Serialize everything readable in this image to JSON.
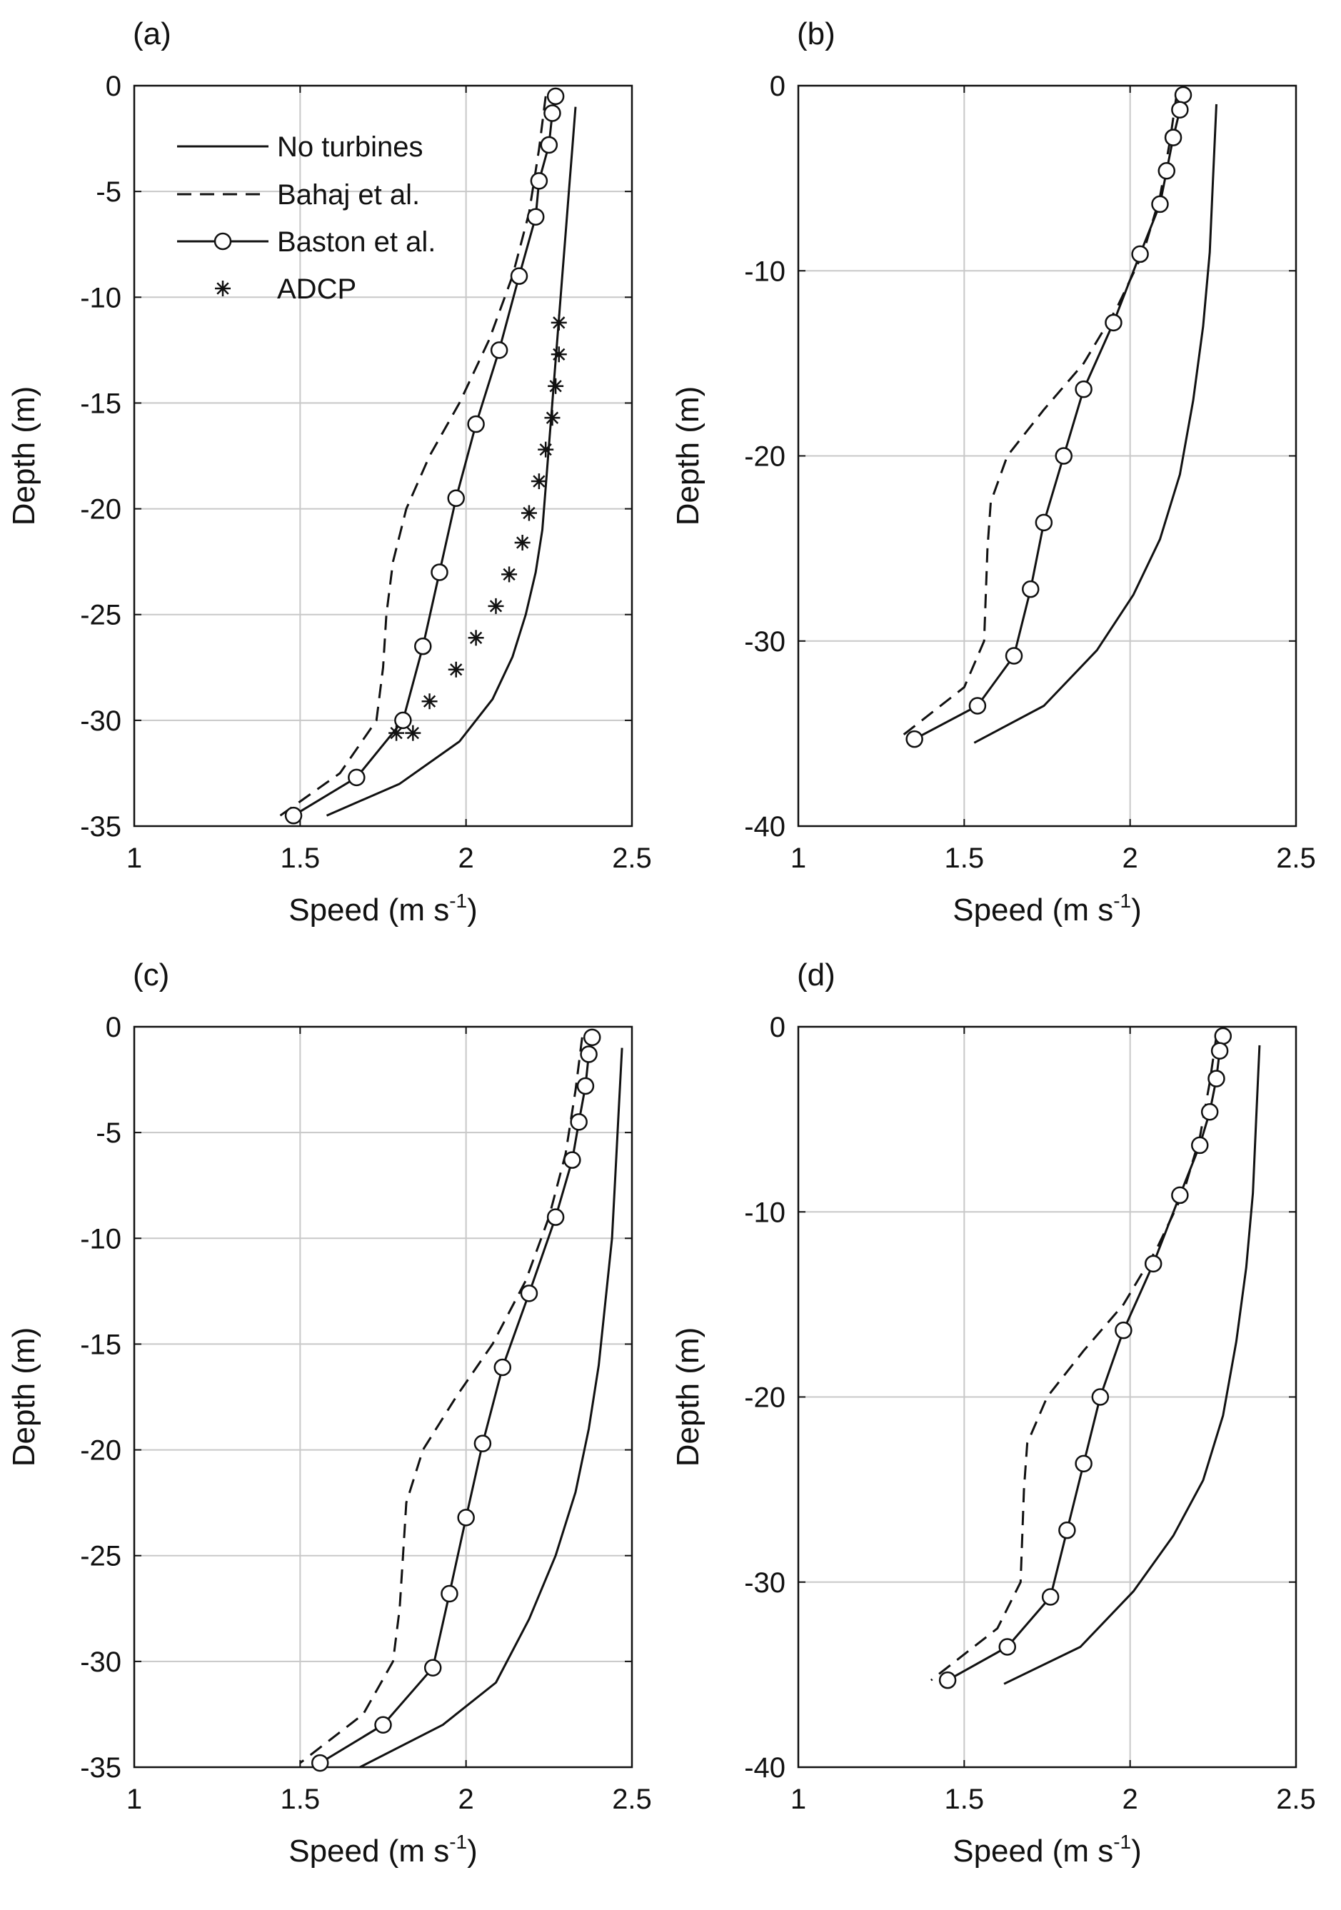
{
  "figure": {
    "background": "#ffffff",
    "line_color": "#111111",
    "grid_color": "#c8c8c8"
  },
  "legend": {
    "items": [
      {
        "name": "No turbines",
        "style": "solid"
      },
      {
        "name": "Bahaj et al.",
        "style": "dashed"
      },
      {
        "name": "Baston et al.",
        "style": "solid-circle"
      },
      {
        "name": "ADCP",
        "style": "asterisk"
      }
    ]
  },
  "chart_data": [
    {
      "panel": "(a)",
      "type": "line",
      "xlabel": "Speed (m s",
      "xlabel_sup": "-1",
      "xlabel_close": ")",
      "ylabel": "Depth (m)",
      "xlim": [
        1,
        2.5
      ],
      "ylim": [
        -35,
        0
      ],
      "xticks": [
        1,
        1.5,
        2,
        2.5
      ],
      "xtick_labels": [
        "1",
        "1.5",
        "2",
        "2.5"
      ],
      "yticks": [
        0,
        -5,
        -10,
        -15,
        -20,
        -25,
        -30,
        -35
      ],
      "ytick_labels": [
        "0",
        "-5",
        "-10",
        "-15",
        "-20",
        "-25",
        "-30",
        "-35"
      ],
      "grid": true,
      "legend": true,
      "series": [
        {
          "name": "No turbines",
          "style": "solid",
          "x": [
            2.33,
            2.32,
            2.31,
            2.3,
            2.29,
            2.28,
            2.27,
            2.26,
            2.25,
            2.24,
            2.23,
            2.21,
            2.18,
            2.14,
            2.08,
            1.98,
            1.8,
            1.58
          ],
          "y": [
            -1,
            -3,
            -5,
            -7,
            -9,
            -11,
            -13,
            -15,
            -17,
            -19,
            -21,
            -23,
            -25,
            -27,
            -29,
            -31,
            -33,
            -34.5
          ]
        },
        {
          "name": "Bahaj et al.",
          "style": "dashed",
          "x": [
            2.24,
            2.22,
            2.19,
            2.14,
            2.07,
            1.98,
            1.89,
            1.82,
            1.78,
            1.76,
            1.75,
            1.73,
            1.62,
            1.44
          ],
          "y": [
            -0.5,
            -3,
            -6,
            -9,
            -12,
            -15,
            -17.5,
            -20,
            -22.5,
            -25,
            -27.5,
            -30,
            -32.5,
            -34.5
          ]
        },
        {
          "name": "Baston et al.",
          "style": "solid-circle",
          "x": [
            2.27,
            2.26,
            2.25,
            2.22,
            2.21,
            2.16,
            2.1,
            2.03,
            1.97,
            1.92,
            1.87,
            1.81,
            1.67,
            1.48
          ],
          "y": [
            -0.5,
            -1.3,
            -2.8,
            -4.5,
            -6.2,
            -9.0,
            -12.5,
            -16.0,
            -19.5,
            -23.0,
            -26.5,
            -30.0,
            -32.7,
            -34.5
          ]
        },
        {
          "name": "ADCP",
          "style": "asterisk",
          "x": [
            2.28,
            2.28,
            2.27,
            2.26,
            2.24,
            2.22,
            2.19,
            2.17,
            2.13,
            2.09,
            2.03,
            1.97,
            1.89,
            1.84,
            1.79
          ],
          "y": [
            -11.2,
            -12.7,
            -14.2,
            -15.7,
            -17.2,
            -18.7,
            -20.2,
            -21.6,
            -23.1,
            -24.6,
            -26.1,
            -27.6,
            -29.1,
            -30.6,
            -30.6
          ]
        }
      ]
    },
    {
      "panel": "(b)",
      "type": "line",
      "xlabel": "Speed (m s",
      "xlabel_sup": "-1",
      "xlabel_close": ")",
      "ylabel": "Depth (m)",
      "xlim": [
        1,
        2.5
      ],
      "ylim": [
        -40,
        0
      ],
      "xticks": [
        1,
        1.5,
        2,
        2.5
      ],
      "xtick_labels": [
        "1",
        "1.5",
        "2",
        "2.5"
      ],
      "yticks": [
        0,
        -10,
        -20,
        -30,
        -40
      ],
      "ytick_labels": [
        "0",
        "-10",
        "-20",
        "-30",
        "-40"
      ],
      "grid": true,
      "legend": false,
      "series": [
        {
          "name": "No turbines",
          "style": "solid",
          "x": [
            2.26,
            2.25,
            2.24,
            2.22,
            2.19,
            2.15,
            2.09,
            2.01,
            1.9,
            1.74,
            1.53
          ],
          "y": [
            -1,
            -5,
            -9,
            -13,
            -17,
            -21,
            -24.5,
            -27.5,
            -30.5,
            -33.5,
            -35.5
          ]
        },
        {
          "name": "Bahaj et al.",
          "style": "dashed",
          "x": [
            2.14,
            2.12,
            2.09,
            2.04,
            1.96,
            1.86,
            1.74,
            1.63,
            1.58,
            1.57,
            1.56,
            1.5,
            1.3
          ],
          "y": [
            -0.5,
            -3,
            -6,
            -9,
            -12,
            -15,
            -17.5,
            -20,
            -22.5,
            -25,
            -30,
            -32.5,
            -35.3
          ]
        },
        {
          "name": "Baston et al.",
          "style": "solid-circle",
          "x": [
            2.16,
            2.15,
            2.13,
            2.11,
            2.09,
            2.03,
            1.95,
            1.86,
            1.8,
            1.74,
            1.7,
            1.65,
            1.54,
            1.35
          ],
          "y": [
            -0.5,
            -1.3,
            -2.8,
            -4.6,
            -6.4,
            -9.1,
            -12.8,
            -16.4,
            -20.0,
            -23.6,
            -27.2,
            -30.8,
            -33.5,
            -35.3
          ]
        }
      ]
    },
    {
      "panel": "(c)",
      "type": "line",
      "xlabel": "Speed (m s",
      "xlabel_sup": "-1",
      "xlabel_close": ")",
      "ylabel": "Depth (m)",
      "xlim": [
        1,
        2.5
      ],
      "ylim": [
        -35,
        0
      ],
      "xticks": [
        1,
        1.5,
        2,
        2.5
      ],
      "xtick_labels": [
        "1",
        "1.5",
        "2",
        "2.5"
      ],
      "yticks": [
        0,
        -5,
        -10,
        -15,
        -20,
        -25,
        -30,
        -35
      ],
      "ytick_labels": [
        "0",
        "-5",
        "-10",
        "-15",
        "-20",
        "-25",
        "-30",
        "-35"
      ],
      "grid": true,
      "legend": false,
      "series": [
        {
          "name": "No turbines",
          "style": "solid",
          "x": [
            2.47,
            2.46,
            2.45,
            2.44,
            2.42,
            2.4,
            2.37,
            2.33,
            2.27,
            2.19,
            2.09,
            1.93,
            1.68
          ],
          "y": [
            -1,
            -4,
            -7,
            -10,
            -13,
            -16,
            -19,
            -22,
            -25,
            -28,
            -31,
            -33,
            -35
          ]
        },
        {
          "name": "Bahaj et al.",
          "style": "dashed",
          "x": [
            2.35,
            2.33,
            2.3,
            2.25,
            2.18,
            2.08,
            1.97,
            1.87,
            1.82,
            1.81,
            1.8,
            1.78,
            1.69,
            1.5
          ],
          "y": [
            -0.5,
            -3,
            -6,
            -9,
            -12,
            -15,
            -17.5,
            -20,
            -22.5,
            -25,
            -27.5,
            -30,
            -32.5,
            -34.8
          ]
        },
        {
          "name": "Baston et al.",
          "style": "solid-circle",
          "x": [
            2.38,
            2.37,
            2.36,
            2.34,
            2.32,
            2.27,
            2.19,
            2.11,
            2.05,
            2.0,
            1.95,
            1.9,
            1.75,
            1.56
          ],
          "y": [
            -0.5,
            -1.3,
            -2.8,
            -4.5,
            -6.3,
            -9.0,
            -12.6,
            -16.1,
            -19.7,
            -23.2,
            -26.8,
            -30.3,
            -33.0,
            -34.8
          ]
        }
      ]
    },
    {
      "panel": "(d)",
      "type": "line",
      "xlabel": "Speed (m s",
      "xlabel_sup": "-1",
      "xlabel_close": ")",
      "ylabel": "Depth (m)",
      "xlim": [
        1,
        2.5
      ],
      "ylim": [
        -40,
        0
      ],
      "xticks": [
        1,
        1.5,
        2,
        2.5
      ],
      "xtick_labels": [
        "1",
        "1.5",
        "2",
        "2.5"
      ],
      "yticks": [
        0,
        -10,
        -20,
        -30,
        -40
      ],
      "ytick_labels": [
        "0",
        "-10",
        "-20",
        "-30",
        "-40"
      ],
      "grid": true,
      "legend": false,
      "series": [
        {
          "name": "No turbines",
          "style": "solid",
          "x": [
            2.39,
            2.38,
            2.37,
            2.35,
            2.32,
            2.28,
            2.22,
            2.13,
            2.01,
            1.85,
            1.62
          ],
          "y": [
            -1,
            -5,
            -9,
            -13,
            -17,
            -21,
            -24.5,
            -27.5,
            -30.5,
            -33.5,
            -35.5
          ]
        },
        {
          "name": "Bahaj et al.",
          "style": "dashed",
          "x": [
            2.26,
            2.24,
            2.21,
            2.16,
            2.08,
            1.98,
            1.86,
            1.75,
            1.69,
            1.68,
            1.67,
            1.6,
            1.4
          ],
          "y": [
            -0.5,
            -3,
            -6,
            -9,
            -12,
            -15,
            -17.5,
            -20,
            -22.5,
            -25,
            -30,
            -32.5,
            -35.3
          ]
        },
        {
          "name": "Baston et al.",
          "style": "solid-circle",
          "x": [
            2.28,
            2.27,
            2.26,
            2.24,
            2.21,
            2.15,
            2.07,
            1.98,
            1.91,
            1.86,
            1.81,
            1.76,
            1.63,
            1.45
          ],
          "y": [
            -0.5,
            -1.3,
            -2.8,
            -4.6,
            -6.4,
            -9.1,
            -12.8,
            -16.4,
            -20.0,
            -23.6,
            -27.2,
            -30.8,
            -33.5,
            -35.3
          ]
        }
      ]
    }
  ]
}
